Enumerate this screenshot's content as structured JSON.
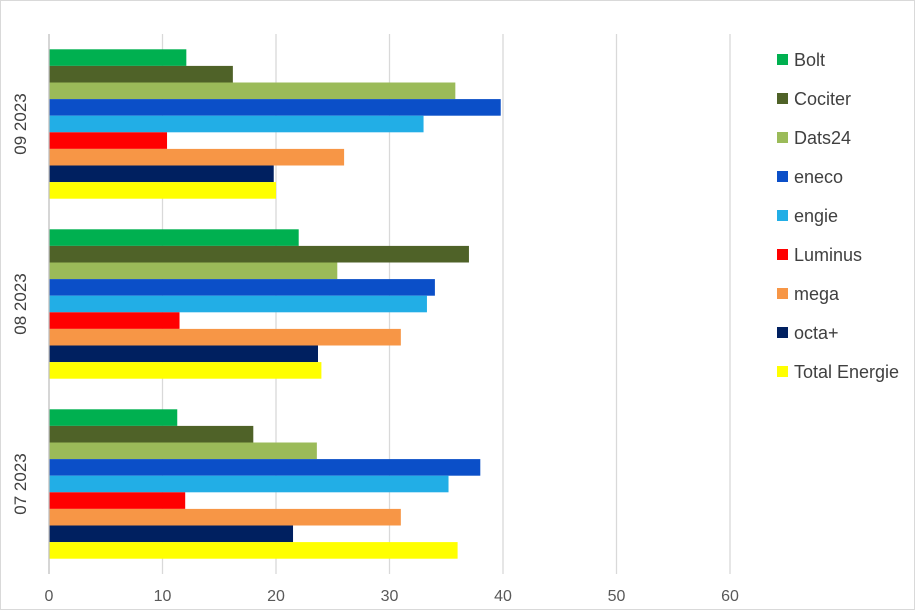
{
  "chart_data": {
    "type": "bar",
    "orientation": "horizontal",
    "categories": [
      "07 2023",
      "08 2023",
      "09 2023"
    ],
    "xlim": [
      0,
      60
    ],
    "xticks": [
      0,
      10,
      20,
      30,
      40,
      50,
      60
    ],
    "grid": true,
    "legend_position": "right",
    "series": [
      {
        "name": "Bolt",
        "color": "#00b050",
        "values": [
          11.3,
          22.0,
          12.1
        ]
      },
      {
        "name": "Cociter",
        "color": "#4f6228",
        "values": [
          18.0,
          37.0,
          16.2
        ]
      },
      {
        "name": "Dats24",
        "color": "#9bbb59",
        "values": [
          23.6,
          25.4,
          35.8
        ]
      },
      {
        "name": "eneco",
        "color": "#0b4fc8",
        "values": [
          38.0,
          34.0,
          39.8
        ]
      },
      {
        "name": "engie",
        "color": "#22aee6",
        "values": [
          35.2,
          33.3,
          33.0
        ]
      },
      {
        "name": "Luminus",
        "color": "#ff0000",
        "values": [
          12.0,
          11.5,
          10.4
        ]
      },
      {
        "name": "mega",
        "color": "#f79646",
        "values": [
          31.0,
          31.0,
          26.0
        ]
      },
      {
        "name": "octa+",
        "color": "#002060",
        "values": [
          21.5,
          23.7,
          19.8
        ]
      },
      {
        "name": "Total Energie",
        "color": "#ffff00",
        "values": [
          36.0,
          24.0,
          20.0
        ]
      }
    ],
    "title": "",
    "xlabel": "",
    "ylabel": ""
  }
}
